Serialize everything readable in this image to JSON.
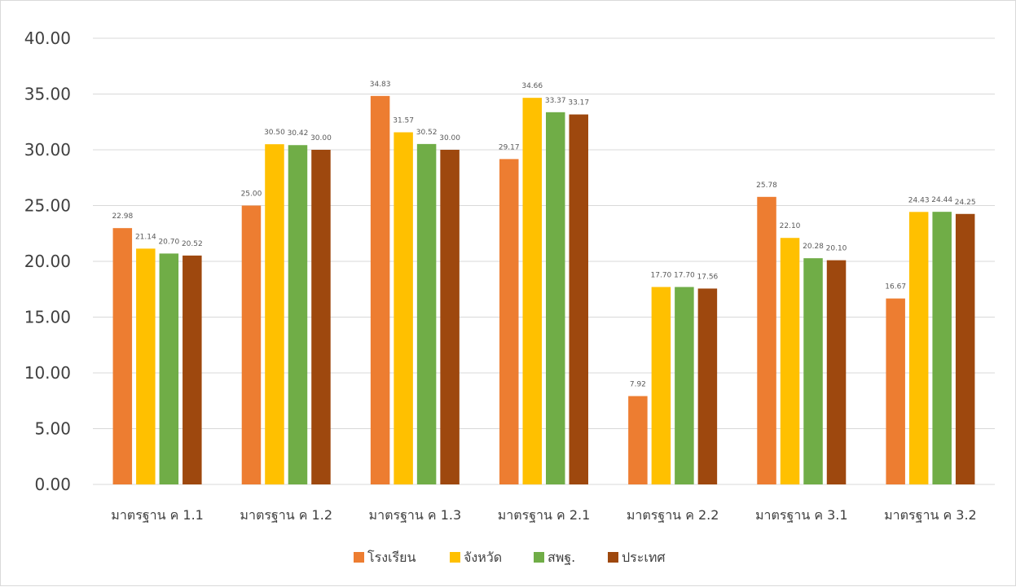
{
  "chart_data": {
    "type": "bar",
    "categories": [
      "มาตรฐาน ค 1.1",
      "มาตรฐาน ค 1.2",
      "มาตรฐาน ค 1.3",
      "มาตรฐาน ค 2.1",
      "มาตรฐาน ค 2.2",
      "มาตรฐาน ค 3.1",
      "มาตรฐาน ค 3.2"
    ],
    "series": [
      {
        "name": "โรงเรียน",
        "color": "#ED7D31",
        "values": [
          22.98,
          25.0,
          34.83,
          29.17,
          7.92,
          25.78,
          16.67
        ]
      },
      {
        "name": "จังหวัด",
        "color": "#FFC000",
        "values": [
          21.14,
          30.5,
          31.57,
          34.66,
          17.7,
          22.1,
          24.43
        ]
      },
      {
        "name": "สพฐ.",
        "color": "#70AD47",
        "values": [
          20.7,
          30.42,
          30.52,
          33.37,
          17.7,
          20.28,
          24.44
        ]
      },
      {
        "name": "ประเทศ",
        "color": "#9E480E",
        "values": [
          20.52,
          30.0,
          30.0,
          33.17,
          17.56,
          20.1,
          24.25
        ]
      }
    ],
    "ylim": [
      0,
      40
    ],
    "yticks": [
      "0.00",
      "5.00",
      "10.00",
      "15.00",
      "20.00",
      "25.00",
      "30.00",
      "35.00",
      "40.00"
    ],
    "grid": true,
    "legend": "bottom",
    "title": "",
    "xlabel": "",
    "ylabel": ""
  }
}
